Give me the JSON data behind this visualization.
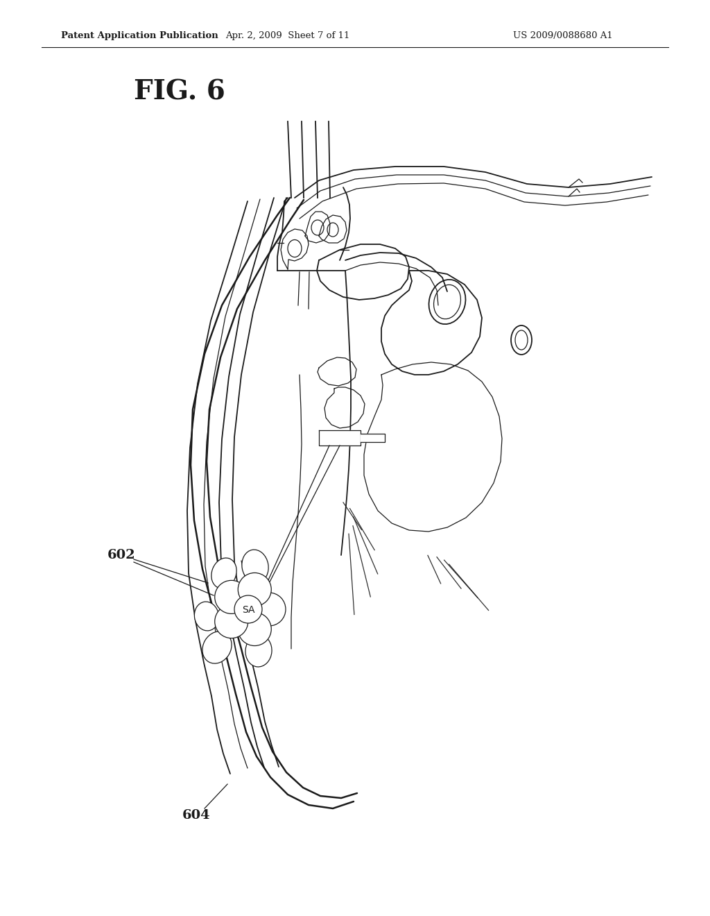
{
  "title_fig": "FIG. 6",
  "header_left": "Patent Application Publication",
  "header_mid": "Apr. 2, 2009  Sheet 7 of 11",
  "header_right": "US 2009/0088680 A1",
  "label_602": "602",
  "label_604": "604",
  "label_sa": "SA",
  "background_color": "#ffffff",
  "line_color": "#1a1a1a",
  "fig_width": 10.24,
  "fig_height": 13.2
}
